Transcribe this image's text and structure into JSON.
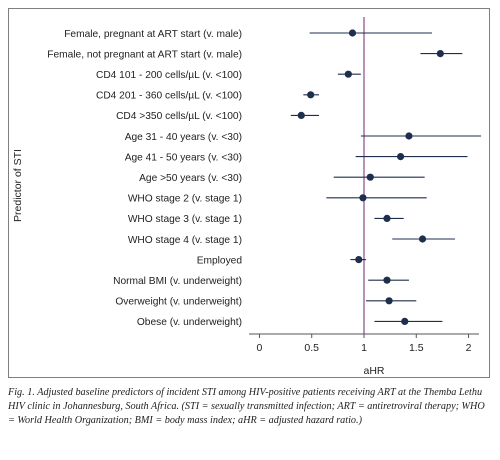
{
  "chart_data": {
    "type": "forest",
    "xlabel": "aHR",
    "ylabel": "Predictor of STI",
    "xlim": [
      -0.1,
      2.1
    ],
    "xticks": [
      0,
      0.5,
      1,
      1.5,
      2
    ],
    "xtick_labels": [
      "0",
      "0.5",
      "1",
      "1.5",
      "2"
    ],
    "reference_line": 1,
    "colors": {
      "point": "#1e2f4d",
      "ci_line": "#1e2f4d",
      "reference_line": "#8a4a8e",
      "axis": "#555555",
      "text": "#222222"
    },
    "rows": [
      {
        "label": "Female, pregnant at ART start (v. male)",
        "estimate": 0.89,
        "lower": 0.48,
        "upper": 1.65
      },
      {
        "label": "Female, not pregnant at ART start (v. male)",
        "estimate": 1.73,
        "lower": 1.54,
        "upper": 1.94
      },
      {
        "label": "CD4 101 - 200 cells/µL (v. <100)",
        "estimate": 0.85,
        "lower": 0.75,
        "upper": 0.97
      },
      {
        "label": "CD4 201 - 360 cells/µL (v. <100)",
        "estimate": 0.49,
        "lower": 0.42,
        "upper": 0.57
      },
      {
        "label": "CD4 >350 cells/µL (v. <100)",
        "estimate": 0.4,
        "lower": 0.3,
        "upper": 0.57
      },
      {
        "label": "Age 31 - 40 years (v. <30)",
        "estimate": 1.43,
        "lower": 0.97,
        "upper": 2.12
      },
      {
        "label": "Age 41 - 50 years (v. <30)",
        "estimate": 1.35,
        "lower": 0.92,
        "upper": 1.99
      },
      {
        "label": "Age >50 years (v. <30)",
        "estimate": 1.06,
        "lower": 0.71,
        "upper": 1.58
      },
      {
        "label": "WHO stage 2 (v. stage 1)",
        "estimate": 0.99,
        "lower": 0.64,
        "upper": 1.6
      },
      {
        "label": "WHO stage 3 (v. stage 1)",
        "estimate": 1.22,
        "lower": 1.1,
        "upper": 1.38
      },
      {
        "label": "WHO stage 4 (v. stage 1)",
        "estimate": 1.56,
        "lower": 1.27,
        "upper": 1.87
      },
      {
        "label": "Employed",
        "estimate": 0.95,
        "lower": 0.87,
        "upper": 1.02
      },
      {
        "label": "Normal BMI (v. underweight)",
        "estimate": 1.22,
        "lower": 1.04,
        "upper": 1.43
      },
      {
        "label": "Overweight (v. underweight)",
        "estimate": 1.24,
        "lower": 1.02,
        "upper": 1.5
      },
      {
        "label": "Obese (v. underweight)",
        "estimate": 1.39,
        "lower": 1.1,
        "upper": 1.75
      }
    ]
  },
  "caption": {
    "text": "Fig. 1. Adjusted baseline predictors of incident STI among HIV-positive patients receiving ART at the Themba Lethu HIV clinic in Johannesburg, South Africa. (STI = sexually transmitted infection; ART = antiretroviral therapy; WHO = World Health Organization; BMI = body mass index; aHR = adjusted hazard ratio.)"
  }
}
